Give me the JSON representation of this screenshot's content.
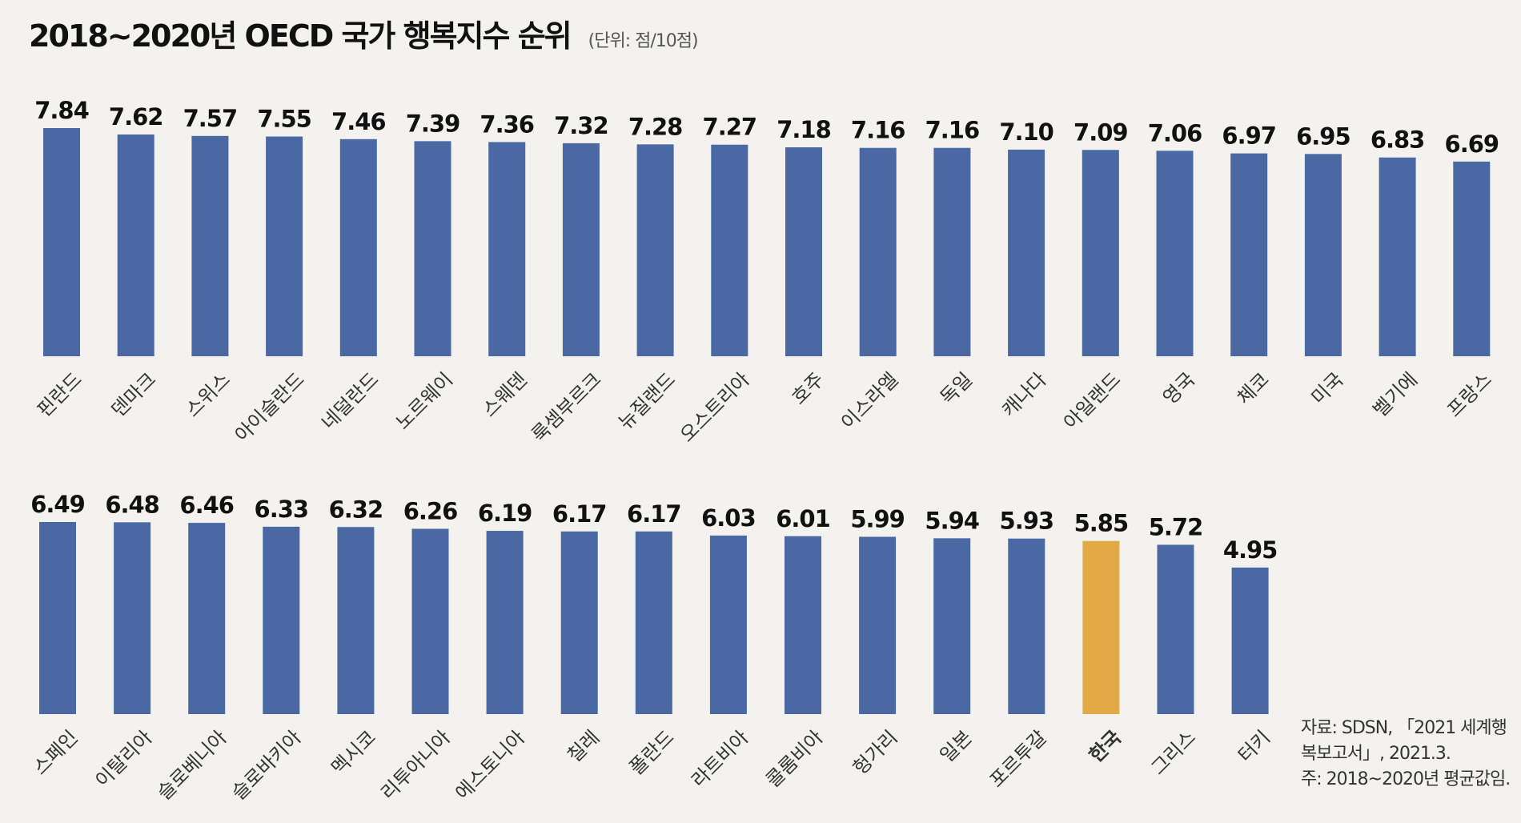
{
  "title": "2018~2020년 OECD 국가 행복지수 순위",
  "unit": "(단위: 점/10점)",
  "source": {
    "line1": "자료: SDSN, 「2021 세계행",
    "line2": "복보고서」, 2021.3.",
    "line3": "주: 2018~2020년 평균값임."
  },
  "colors": {
    "bar": "#4a68a4",
    "highlight": "#e2aa47",
    "background": "#f3f2ee",
    "highlight_label": "#e2aa47"
  },
  "chart_data": [
    {
      "type": "bar",
      "title": "2018~2020년 OECD 국가 행복지수 순위",
      "ylabel": "점/10점",
      "ylim": [
        0,
        7.84
      ],
      "categories": [
        "핀란드",
        "덴마크",
        "스위스",
        "아이슬란드",
        "네덜란드",
        "노르웨이",
        "스웨덴",
        "룩셈부르크",
        "뉴질랜드",
        "오스트리아",
        "호주",
        "이스라엘",
        "독일",
        "캐나다",
        "아일랜드",
        "영국",
        "체코",
        "미국",
        "벨기에",
        "프랑스"
      ],
      "values": [
        7.84,
        7.62,
        7.57,
        7.55,
        7.46,
        7.39,
        7.36,
        7.32,
        7.28,
        7.27,
        7.18,
        7.16,
        7.16,
        7.1,
        7.09,
        7.06,
        6.97,
        6.95,
        6.83,
        6.69
      ],
      "value_labels": [
        "7.84",
        "7.62",
        "7.57",
        "7.55",
        "7.46",
        "7.39",
        "7.36",
        "7.32",
        "7.28",
        "7.27",
        "7.18",
        "7.16",
        "7.16",
        "7.10",
        "7.09",
        "7.06",
        "6.97",
        "6.95",
        "6.83",
        "6.69"
      ],
      "highlight": null
    },
    {
      "type": "bar",
      "categories": [
        "스페인",
        "이탈리아",
        "슬로베니아",
        "슬로바키아",
        "멕시코",
        "리투아니아",
        "에스토니아",
        "칠레",
        "폴란드",
        "라트비아",
        "콜롬비아",
        "헝가리",
        "일본",
        "포르투갈",
        "한국",
        "그리스",
        "터키"
      ],
      "values": [
        6.49,
        6.48,
        6.46,
        6.33,
        6.32,
        6.26,
        6.19,
        6.17,
        6.17,
        6.03,
        6.01,
        5.99,
        5.94,
        5.93,
        5.85,
        5.72,
        4.95
      ],
      "value_labels": [
        "6.49",
        "6.48",
        "6.46",
        "6.33",
        "6.32",
        "6.26",
        "6.19",
        "6.17",
        "6.17",
        "6.03",
        "6.01",
        "5.99",
        "5.94",
        "5.93",
        "5.85",
        "5.72",
        "4.95"
      ],
      "highlight": "한국"
    }
  ]
}
